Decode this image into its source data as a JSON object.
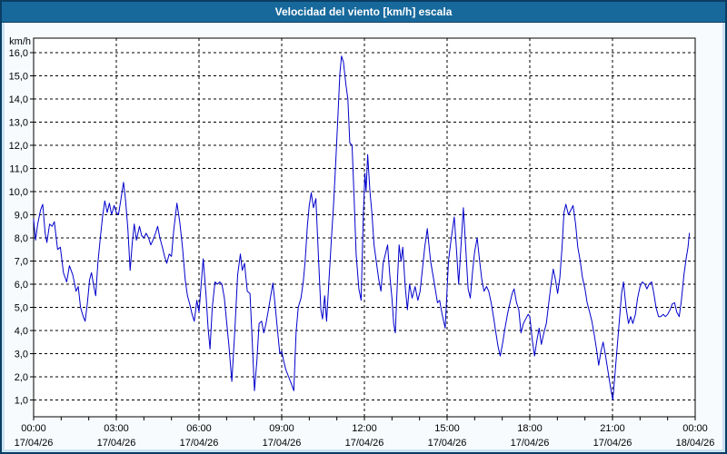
{
  "titlebar": {
    "title": "Velocidad del viento [km/h] escala"
  },
  "colors": {
    "titlebar_bg": "#17699c",
    "titlebar_text": "#ffffff",
    "window_border": "#0b3d63",
    "frame_strip": "#c9e1f0",
    "panel_bg": "#f7fbfe",
    "plot_bg": "#ffffff",
    "grid": "#000000",
    "series_line": "#0000cc",
    "tick_text": "#000000"
  },
  "chart_data": {
    "type": "line",
    "title": "Velocidad del viento [km/h] escala",
    "ylabel": "km/h",
    "xlabel": "",
    "grid": "dashed",
    "legend": "none",
    "ylim": [
      0.3,
      16.6
    ],
    "xlim_hours": [
      0,
      24
    ],
    "x_minor_tick_hours": 1,
    "y_ticks": [
      {
        "value": 16,
        "label": "16,0"
      },
      {
        "value": 15,
        "label": "15,0"
      },
      {
        "value": 14,
        "label": "14,0"
      },
      {
        "value": 13,
        "label": "13,0"
      },
      {
        "value": 12,
        "label": "12,0"
      },
      {
        "value": 11,
        "label": "11,0"
      },
      {
        "value": 10,
        "label": "10,0"
      },
      {
        "value": 9,
        "label": "9,0"
      },
      {
        "value": 8,
        "label": "8,0"
      },
      {
        "value": 7,
        "label": "7,0"
      },
      {
        "value": 6,
        "label": "6,0"
      },
      {
        "value": 5,
        "label": "5,0"
      },
      {
        "value": 4,
        "label": "4,0"
      },
      {
        "value": 3,
        "label": "3,0"
      },
      {
        "value": 2,
        "label": "2,0"
      },
      {
        "value": 1,
        "label": "1,0"
      }
    ],
    "x_ticks": [
      {
        "hour": 0,
        "time": "00:00",
        "date": "17/04/26"
      },
      {
        "hour": 3,
        "time": "03:00",
        "date": "17/04/26"
      },
      {
        "hour": 6,
        "time": "06:00",
        "date": "17/04/26"
      },
      {
        "hour": 9,
        "time": "09:00",
        "date": "17/04/26"
      },
      {
        "hour": 12,
        "time": "12:00",
        "date": "17/04/26"
      },
      {
        "hour": 15,
        "time": "15:00",
        "date": "17/04/26"
      },
      {
        "hour": 18,
        "time": "18:00",
        "date": "17/04/26"
      },
      {
        "hour": 21,
        "time": "21:00",
        "date": "17/04/26"
      },
      {
        "hour": 24,
        "time": "00:00",
        "date": "18/04/26"
      }
    ],
    "series": [
      {
        "name": "Velocidad del viento",
        "color": "#0000cc",
        "points": [
          [
            0.0,
            8.8
          ],
          [
            0.07,
            7.9
          ],
          [
            0.15,
            8.6
          ],
          [
            0.25,
            9.2
          ],
          [
            0.33,
            9.45
          ],
          [
            0.42,
            8.2
          ],
          [
            0.48,
            7.8
          ],
          [
            0.58,
            8.6
          ],
          [
            0.67,
            8.5
          ],
          [
            0.75,
            8.7
          ],
          [
            0.87,
            7.5
          ],
          [
            0.97,
            7.6
          ],
          [
            1.08,
            6.5
          ],
          [
            1.2,
            6.1
          ],
          [
            1.3,
            6.8
          ],
          [
            1.42,
            6.4
          ],
          [
            1.54,
            5.7
          ],
          [
            1.62,
            5.9
          ],
          [
            1.7,
            5.0
          ],
          [
            1.8,
            4.6
          ],
          [
            1.87,
            4.4
          ],
          [
            1.95,
            5.2
          ],
          [
            2.03,
            6.2
          ],
          [
            2.1,
            6.5
          ],
          [
            2.17,
            6.0
          ],
          [
            2.25,
            5.5
          ],
          [
            2.33,
            6.9
          ],
          [
            2.42,
            8.0
          ],
          [
            2.5,
            8.9
          ],
          [
            2.58,
            9.6
          ],
          [
            2.67,
            9.1
          ],
          [
            2.75,
            9.5
          ],
          [
            2.83,
            9.0
          ],
          [
            2.92,
            9.4
          ],
          [
            3.0,
            9.1
          ],
          [
            3.08,
            9.0
          ],
          [
            3.17,
            9.7
          ],
          [
            3.26,
            10.4
          ],
          [
            3.33,
            9.7
          ],
          [
            3.42,
            8.4
          ],
          [
            3.5,
            6.6
          ],
          [
            3.58,
            7.8
          ],
          [
            3.65,
            8.6
          ],
          [
            3.73,
            7.9
          ],
          [
            3.84,
            8.5
          ],
          [
            3.92,
            8.1
          ],
          [
            4.0,
            8.0
          ],
          [
            4.08,
            8.2
          ],
          [
            4.17,
            8.0
          ],
          [
            4.25,
            7.7
          ],
          [
            4.33,
            7.9
          ],
          [
            4.42,
            8.2
          ],
          [
            4.5,
            8.5
          ],
          [
            4.58,
            8.0
          ],
          [
            4.67,
            7.6
          ],
          [
            4.75,
            7.2
          ],
          [
            4.83,
            6.9
          ],
          [
            4.92,
            7.3
          ],
          [
            5.0,
            7.2
          ],
          [
            5.08,
            8.3
          ],
          [
            5.2,
            9.5
          ],
          [
            5.3,
            8.7
          ],
          [
            5.4,
            7.6
          ],
          [
            5.5,
            6.2
          ],
          [
            5.58,
            5.5
          ],
          [
            5.67,
            5.1
          ],
          [
            5.75,
            4.7
          ],
          [
            5.83,
            4.4
          ],
          [
            5.92,
            5.3
          ],
          [
            6.0,
            4.8
          ],
          [
            6.08,
            6.0
          ],
          [
            6.15,
            7.1
          ],
          [
            6.25,
            5.6
          ],
          [
            6.33,
            4.1
          ],
          [
            6.4,
            3.2
          ],
          [
            6.48,
            5.0
          ],
          [
            6.58,
            6.1
          ],
          [
            6.67,
            6.0
          ],
          [
            6.75,
            6.1
          ],
          [
            6.83,
            6.0
          ],
          [
            6.92,
            5.4
          ],
          [
            7.0,
            4.4
          ],
          [
            7.08,
            3.4
          ],
          [
            7.19,
            1.8
          ],
          [
            7.3,
            4.0
          ],
          [
            7.4,
            6.4
          ],
          [
            7.5,
            7.3
          ],
          [
            7.57,
            6.6
          ],
          [
            7.65,
            6.9
          ],
          [
            7.75,
            5.7
          ],
          [
            7.85,
            5.6
          ],
          [
            7.93,
            3.6
          ],
          [
            8.01,
            1.4
          ],
          [
            8.1,
            2.7
          ],
          [
            8.18,
            4.3
          ],
          [
            8.27,
            4.4
          ],
          [
            8.35,
            3.9
          ],
          [
            8.43,
            4.3
          ],
          [
            8.52,
            4.9
          ],
          [
            8.6,
            5.5
          ],
          [
            8.68,
            6.05
          ],
          [
            8.77,
            5.0
          ],
          [
            8.85,
            4.0
          ],
          [
            8.93,
            3.0
          ],
          [
            9.0,
            3.1
          ],
          [
            9.07,
            2.7
          ],
          [
            9.15,
            2.3
          ],
          [
            9.25,
            2.0
          ],
          [
            9.35,
            1.7
          ],
          [
            9.44,
            1.4
          ],
          [
            9.52,
            3.9
          ],
          [
            9.6,
            5.0
          ],
          [
            9.7,
            5.4
          ],
          [
            9.78,
            6.1
          ],
          [
            9.85,
            7.0
          ],
          [
            9.93,
            8.5
          ],
          [
            10.0,
            9.4
          ],
          [
            10.07,
            9.95
          ],
          [
            10.15,
            9.3
          ],
          [
            10.24,
            9.7
          ],
          [
            10.33,
            7.3
          ],
          [
            10.42,
            4.9
          ],
          [
            10.48,
            4.5
          ],
          [
            10.56,
            5.5
          ],
          [
            10.63,
            4.4
          ],
          [
            10.72,
            6.3
          ],
          [
            10.8,
            7.9
          ],
          [
            10.88,
            9.4
          ],
          [
            10.96,
            11.3
          ],
          [
            11.04,
            13.3
          ],
          [
            11.11,
            15.1
          ],
          [
            11.17,
            15.85
          ],
          [
            11.24,
            15.6
          ],
          [
            11.33,
            14.6
          ],
          [
            11.4,
            14.0
          ],
          [
            11.47,
            12.1
          ],
          [
            11.55,
            12.0
          ],
          [
            11.62,
            9.9
          ],
          [
            11.7,
            7.3
          ],
          [
            11.8,
            5.8
          ],
          [
            11.88,
            5.3
          ],
          [
            11.96,
            9.0
          ],
          [
            12.02,
            10.8
          ],
          [
            12.06,
            10.0
          ],
          [
            12.12,
            11.6
          ],
          [
            12.2,
            10.0
          ],
          [
            12.27,
            9.1
          ],
          [
            12.35,
            7.7
          ],
          [
            12.43,
            7.0
          ],
          [
            12.52,
            6.2
          ],
          [
            12.6,
            5.7
          ],
          [
            12.68,
            6.9
          ],
          [
            12.76,
            7.3
          ],
          [
            12.84,
            7.7
          ],
          [
            12.92,
            6.4
          ],
          [
            13.0,
            5.4
          ],
          [
            13.06,
            4.3
          ],
          [
            13.12,
            3.9
          ],
          [
            13.2,
            6.2
          ],
          [
            13.26,
            7.7
          ],
          [
            13.33,
            7.0
          ],
          [
            13.39,
            7.6
          ],
          [
            13.48,
            5.9
          ],
          [
            13.56,
            4.9
          ],
          [
            13.64,
            6.0
          ],
          [
            13.73,
            5.4
          ],
          [
            13.84,
            5.9
          ],
          [
            13.94,
            5.3
          ],
          [
            14.02,
            5.7
          ],
          [
            14.1,
            6.6
          ],
          [
            14.19,
            7.6
          ],
          [
            14.28,
            8.4
          ],
          [
            14.4,
            7.0
          ],
          [
            14.53,
            6.1
          ],
          [
            14.65,
            5.2
          ],
          [
            14.73,
            5.3
          ],
          [
            14.82,
            4.7
          ],
          [
            14.93,
            4.1
          ],
          [
            15.05,
            7.0
          ],
          [
            15.15,
            8.0
          ],
          [
            15.26,
            8.9
          ],
          [
            15.34,
            7.5
          ],
          [
            15.42,
            6.0
          ],
          [
            15.5,
            7.6
          ],
          [
            15.59,
            9.3
          ],
          [
            15.68,
            7.5
          ],
          [
            15.76,
            5.8
          ],
          [
            15.84,
            5.4
          ],
          [
            15.92,
            6.5
          ],
          [
            16.0,
            7.4
          ],
          [
            16.09,
            8.0
          ],
          [
            16.18,
            7.0
          ],
          [
            16.26,
            6.2
          ],
          [
            16.34,
            5.7
          ],
          [
            16.43,
            5.9
          ],
          [
            16.51,
            5.7
          ],
          [
            16.6,
            5.2
          ],
          [
            16.68,
            4.6
          ],
          [
            16.77,
            3.9
          ],
          [
            16.85,
            3.3
          ],
          [
            16.93,
            2.9
          ],
          [
            17.02,
            3.5
          ],
          [
            17.1,
            4.1
          ],
          [
            17.19,
            4.7
          ],
          [
            17.28,
            5.2
          ],
          [
            17.36,
            5.6
          ],
          [
            17.43,
            5.8
          ],
          [
            17.52,
            5.2
          ],
          [
            17.6,
            4.9
          ],
          [
            17.68,
            3.9
          ],
          [
            17.77,
            4.3
          ],
          [
            17.85,
            4.5
          ],
          [
            17.94,
            4.7
          ],
          [
            18.0,
            4.6
          ],
          [
            18.09,
            3.6
          ],
          [
            18.17,
            2.9
          ],
          [
            18.26,
            3.6
          ],
          [
            18.34,
            4.1
          ],
          [
            18.42,
            3.4
          ],
          [
            18.51,
            3.9
          ],
          [
            18.6,
            4.3
          ],
          [
            18.68,
            5.1
          ],
          [
            18.77,
            6.0
          ],
          [
            18.85,
            6.65
          ],
          [
            18.93,
            6.2
          ],
          [
            19.01,
            5.6
          ],
          [
            19.09,
            6.3
          ],
          [
            19.17,
            7.6
          ],
          [
            19.24,
            9.1
          ],
          [
            19.31,
            9.45
          ],
          [
            19.4,
            9.0
          ],
          [
            19.49,
            9.2
          ],
          [
            19.57,
            9.4
          ],
          [
            19.66,
            8.6
          ],
          [
            19.74,
            7.6
          ],
          [
            19.83,
            7.0
          ],
          [
            19.91,
            6.3
          ],
          [
            20.0,
            5.8
          ],
          [
            20.08,
            5.2
          ],
          [
            20.17,
            4.8
          ],
          [
            20.25,
            4.4
          ],
          [
            20.34,
            3.8
          ],
          [
            20.42,
            3.2
          ],
          [
            20.5,
            2.5
          ],
          [
            20.58,
            3.1
          ],
          [
            20.66,
            3.5
          ],
          [
            20.75,
            2.9
          ],
          [
            20.83,
            2.3
          ],
          [
            20.92,
            1.6
          ],
          [
            21.01,
            1.0
          ],
          [
            21.09,
            2.1
          ],
          [
            21.17,
            3.3
          ],
          [
            21.26,
            4.6
          ],
          [
            21.33,
            5.6
          ],
          [
            21.4,
            6.1
          ],
          [
            21.49,
            5.0
          ],
          [
            21.58,
            4.3
          ],
          [
            21.66,
            4.6
          ],
          [
            21.74,
            4.3
          ],
          [
            21.83,
            4.7
          ],
          [
            21.91,
            5.4
          ],
          [
            22.0,
            5.9
          ],
          [
            22.08,
            6.1
          ],
          [
            22.17,
            6.0
          ],
          [
            22.25,
            5.8
          ],
          [
            22.33,
            6.0
          ],
          [
            22.42,
            6.1
          ],
          [
            22.5,
            5.6
          ],
          [
            22.58,
            5.0
          ],
          [
            22.67,
            4.6
          ],
          [
            22.75,
            4.6
          ],
          [
            22.84,
            4.7
          ],
          [
            22.92,
            4.6
          ],
          [
            23.0,
            4.7
          ],
          [
            23.09,
            4.9
          ],
          [
            23.17,
            5.15
          ],
          [
            23.25,
            5.2
          ],
          [
            23.33,
            4.8
          ],
          [
            23.42,
            4.6
          ],
          [
            23.5,
            5.3
          ],
          [
            23.59,
            6.4
          ],
          [
            23.67,
            7.1
          ],
          [
            23.74,
            7.6
          ],
          [
            23.79,
            8.2
          ]
        ]
      }
    ]
  }
}
